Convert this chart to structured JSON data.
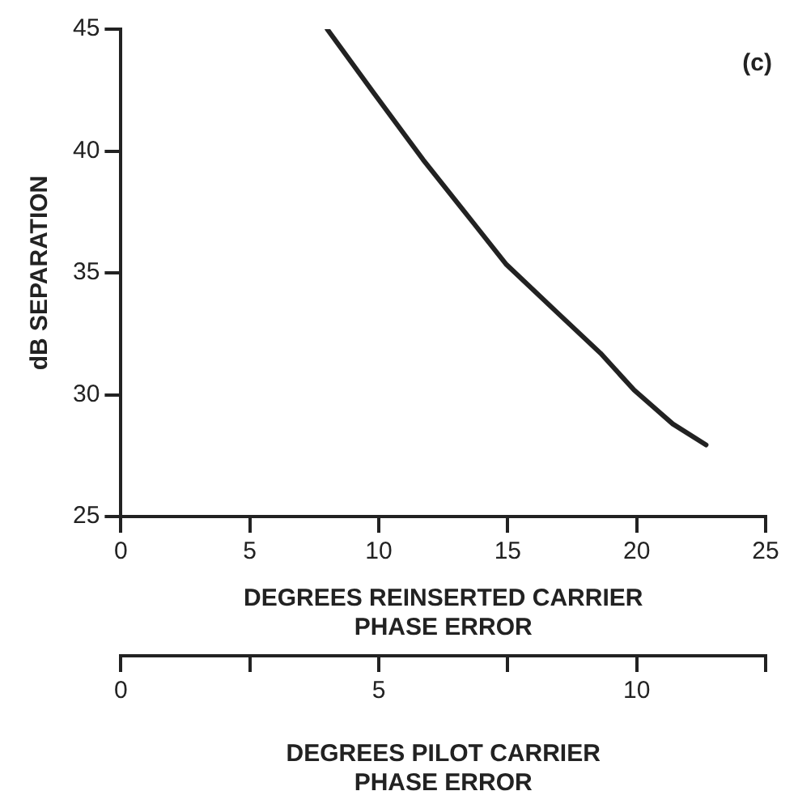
{
  "chart_data": {
    "type": "line",
    "xlabel": "DEGREES REINSERTED CARRIER PHASE ERROR",
    "ylabel": "dB SEPARATION",
    "x2label": "DEGREES PILOT CARRIER PHASE ERROR",
    "annotations": [
      "(c)"
    ],
    "xlim": [
      0,
      25
    ],
    "xticks": [
      0,
      5,
      10,
      15,
      20,
      25
    ],
    "x2lim": [
      0,
      12.5
    ],
    "x2ticks": [
      0,
      {
        "value": 2.5,
        "label": null
      },
      5,
      {
        "value": 7.5,
        "label": null
      },
      10,
      {
        "value": 12.5,
        "label": null
      }
    ],
    "ylim": [
      25,
      45
    ],
    "yticks": [
      25,
      30,
      35,
      40,
      45
    ],
    "grid": false,
    "legend": false,
    "marker": "none",
    "line_style": "solid",
    "series": [
      {
        "color": "#222222",
        "x": [
          8.0,
          9.78,
          11.72,
          13.66,
          14.95,
          16.88,
          18.6,
          19.9,
          21.4,
          22.69
        ],
        "values": [
          45,
          42.42,
          39.64,
          37.06,
          35.34,
          33.41,
          31.7,
          30.19,
          28.8,
          27.94
        ]
      }
    ]
  }
}
